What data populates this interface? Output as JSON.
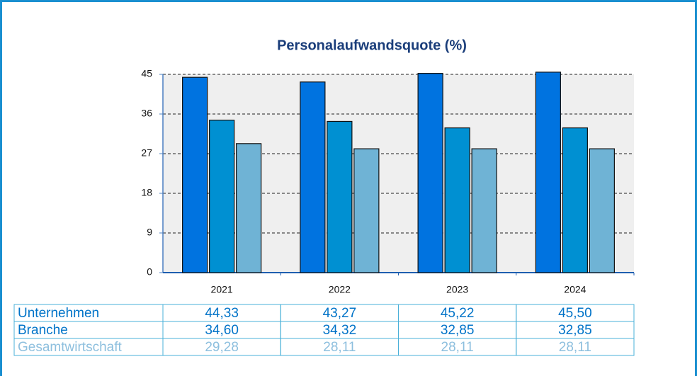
{
  "chart_data": {
    "type": "bar",
    "title": "Personalaufwandsquote (%)",
    "categories": [
      "2021",
      "2022",
      "2023",
      "2024"
    ],
    "series": [
      {
        "name": "Unternehmen",
        "color": "#0073e0",
        "values": [
          44.33,
          43.27,
          45.22,
          45.5
        ],
        "value_labels": [
          "44,33",
          "43,27",
          "45,22",
          "45,50"
        ]
      },
      {
        "name": "Branche",
        "color": "#0090d2",
        "values": [
          34.6,
          34.32,
          32.85,
          32.85
        ],
        "value_labels": [
          "34,60",
          "34,32",
          "32,85",
          "32,85"
        ]
      },
      {
        "name": "Gesamtwirtschaft",
        "color": "#6fb3d5",
        "values": [
          29.28,
          28.11,
          28.11,
          28.11
        ],
        "value_labels": [
          "29,28",
          "28,11",
          "28,11",
          "28,11"
        ]
      }
    ],
    "ylim": [
      0,
      45
    ],
    "yticks": [
      0,
      9,
      18,
      27,
      36,
      45
    ],
    "grid": true
  }
}
